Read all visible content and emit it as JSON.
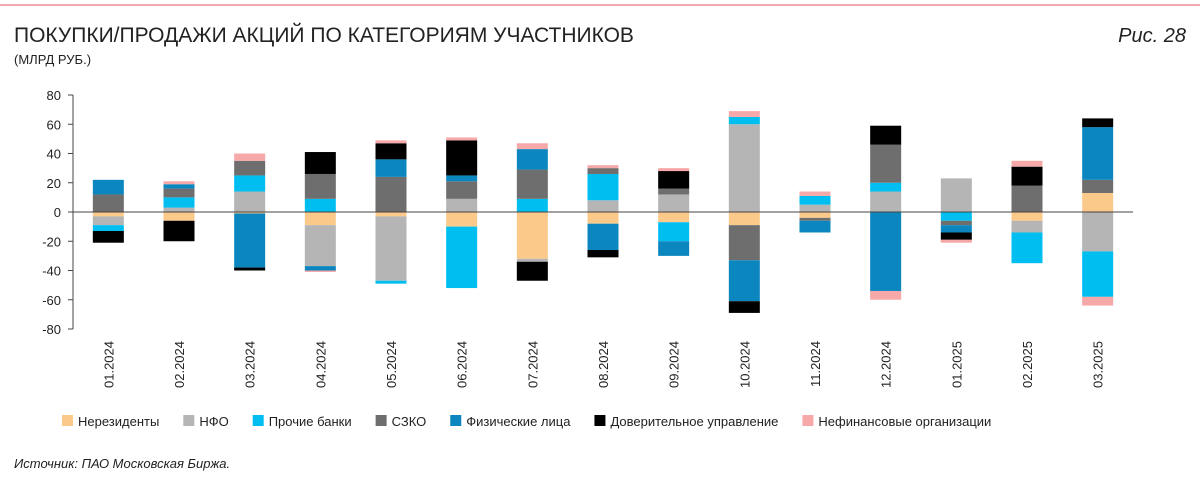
{
  "chart_data": {
    "type": "stacked_bar",
    "title": "ПОКУПКИ/ПРОДАЖИ АКЦИЙ ПО КАТЕГОРИЯМ УЧАСТНИКОВ",
    "subtitle": "(МЛРД РУБ.)",
    "figure_label": "Рис. 28",
    "source": "Источник: ПАО Московская Биржа.",
    "categories": [
      "01.2024",
      "02.2024",
      "03.2024",
      "04.2024",
      "05.2024",
      "06.2024",
      "07.2024",
      "08.2024",
      "09.2024",
      "10.2024",
      "11.2024",
      "12.2024",
      "01.2025",
      "02.2025",
      "03.2025"
    ],
    "series": [
      {
        "name": "Нерезиденты",
        "color": "#fbc98a",
        "values": [
          -3,
          -6,
          -1,
          -9,
          -3,
          -10,
          -32,
          -8,
          -7,
          -9,
          -4,
          0,
          0,
          -6,
          13
        ]
      },
      {
        "name": "НФО",
        "color": "#b5b5b5",
        "values": [
          -6,
          3,
          14,
          -28,
          -44,
          9,
          -2,
          8,
          12,
          60,
          5,
          14,
          23,
          -8,
          -27
        ]
      },
      {
        "name": "Прочие банки",
        "color": "#00bff0",
        "values": [
          -4,
          7,
          11,
          9,
          -2,
          -42,
          9,
          18,
          -13,
          5,
          6,
          6,
          -6,
          -21,
          -31
        ]
      },
      {
        "name": "СЗКО",
        "color": "#6e6e6e",
        "values": [
          12,
          6,
          10,
          17,
          24,
          12,
          20,
          4,
          4,
          -24,
          -2,
          26,
          -3,
          18,
          9
        ]
      },
      {
        "name": "Физические лица",
        "color": "#0b86bf",
        "values": [
          10,
          3,
          -37,
          -3,
          12,
          4,
          14,
          -18,
          -10,
          -28,
          -8,
          -54,
          -5,
          0,
          36
        ]
      },
      {
        "name": "Доверительное управление",
        "color": "#000000",
        "values": [
          -8,
          -14,
          -2,
          15,
          11,
          24,
          -13,
          -5,
          12,
          -8,
          0,
          13,
          -5,
          13,
          6
        ]
      },
      {
        "name": "Нефинансовые организации",
        "color": "#f7a8a8",
        "values": [
          0,
          2,
          5,
          -1,
          2,
          2,
          4,
          2,
          2,
          4,
          3,
          -6,
          -2,
          4,
          -6
        ]
      }
    ],
    "ylim": [
      -80,
      80
    ],
    "yticks": [
      -80,
      -60,
      -40,
      -20,
      0,
      20,
      40,
      60,
      80
    ]
  }
}
